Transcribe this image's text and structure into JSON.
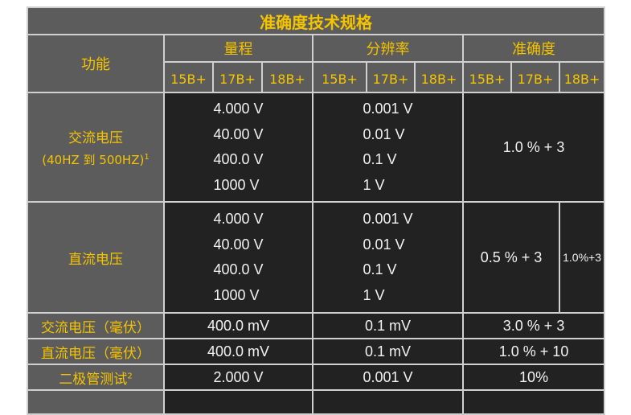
{
  "title": "准确度技术规格",
  "headers": {
    "function": "功能",
    "range": "量程",
    "resolution": "分辨率",
    "accuracy": "准确度"
  },
  "models": [
    "15B+",
    "17B+",
    "18B+"
  ],
  "rows": [
    {
      "function": "交流电压",
      "note": "(40HZ 到 500HZ)",
      "note_sup": "1",
      "range": [
        "4.000 V",
        "40.00 V",
        "400.0 V",
        "1000 V"
      ],
      "resolution": [
        "0.001 V",
        "0.01 V",
        "0.1 V",
        "1 V"
      ],
      "accuracy": "1.0 % + 3"
    },
    {
      "function": "直流电压",
      "range": [
        "4.000 V",
        "40.00 V",
        "400.0 V",
        "1000 V"
      ],
      "resolution": [
        "0.001 V",
        "0.01 V",
        "0.1 V",
        "1 V"
      ],
      "accuracy": "0.5 % + 3",
      "accuracy_18b": "1.0%+3"
    },
    {
      "function": "交流电压（毫伏）",
      "range": "400.0 mV",
      "resolution": "0.1 mV",
      "accuracy": "3.0 % + 3"
    },
    {
      "function": "直流电压（毫伏）",
      "range": "400.0 mV",
      "resolution": "0.1 mV",
      "accuracy": "1.0 % + 10"
    },
    {
      "function": "二极管测试",
      "function_sup": "2",
      "range": "2.000 V",
      "resolution": "0.001 V",
      "accuracy": "10%"
    }
  ],
  "colors": {
    "header_bg": "#5c5c5c",
    "header_text": "#f5c400",
    "cell_bg": "#222222",
    "cell_text": "#f2f2f2",
    "border": "#d0d0d0"
  }
}
